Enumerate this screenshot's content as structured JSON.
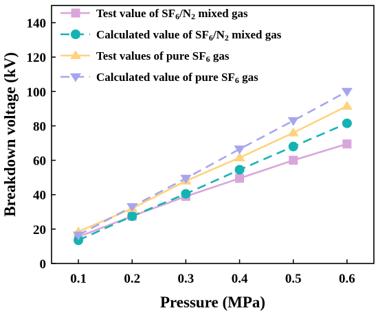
{
  "chart_data": {
    "type": "line",
    "xlabel": "Pressure (MPa)",
    "ylabel": "Breakdown voltage (kV)",
    "x": [
      0.1,
      0.2,
      0.3,
      0.4,
      0.5,
      0.6
    ],
    "x_tick_labels": [
      "0.1",
      "0.2",
      "0.3",
      "0.4",
      "0.5",
      "0.6"
    ],
    "xlim": [
      0.05,
      0.65
    ],
    "ylim": [
      0,
      150
    ],
    "y_ticks": [
      0,
      20,
      40,
      60,
      80,
      100,
      120,
      140
    ],
    "grid": false,
    "legend_position": "top-left",
    "series": [
      {
        "name": "Test value of SF6/N2 mixed gas",
        "legend": [
          [
            "Test value of SF",
            ""
          ],
          [
            "6",
            "sub"
          ],
          [
            "/N",
            ""
          ],
          [
            "2",
            "sub"
          ],
          [
            " mixed gas",
            ""
          ]
        ],
        "values": [
          15.5,
          27.5,
          39,
          49.5,
          60,
          69.5
        ],
        "color": "#d9a6d9",
        "dash": "solid",
        "marker": "square"
      },
      {
        "name": "Calculated value of SF6/N2 mixed gas",
        "legend": [
          [
            "Calculated value of SF",
            ""
          ],
          [
            "6",
            "sub"
          ],
          [
            "/N",
            ""
          ],
          [
            "2",
            "sub"
          ],
          [
            " mixed gas",
            ""
          ]
        ],
        "values": [
          13.5,
          27.5,
          40.5,
          54.5,
          68,
          81.5
        ],
        "color": "#14b3b3",
        "dash": "dashed",
        "marker": "circle"
      },
      {
        "name": "Test values of pure SF6 gas",
        "legend": [
          [
            "Test values of pure SF",
            ""
          ],
          [
            "6",
            "sub"
          ],
          [
            " gas",
            ""
          ]
        ],
        "values": [
          18.5,
          32,
          48,
          61.5,
          76,
          91.5
        ],
        "color": "#ffd27f",
        "dash": "solid",
        "marker": "triangle-up"
      },
      {
        "name": "Calculated value of pure SF6 gas",
        "legend": [
          [
            "Calculated value of pure SF",
            ""
          ],
          [
            "6",
            "sub"
          ],
          [
            " gas",
            ""
          ]
        ],
        "values": [
          16.5,
          33,
          49.5,
          66.5,
          83,
          100
        ],
        "color": "#a6a6ee",
        "dash": "dashed",
        "marker": "triangle-down"
      }
    ]
  }
}
